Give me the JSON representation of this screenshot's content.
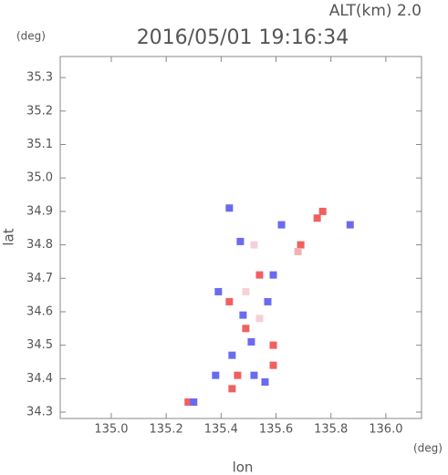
{
  "chart_data": {
    "type": "scatter",
    "title": "2016/05/01 19:16:34",
    "subtitle": "ALT(km) 2.0",
    "x_axis_label": "lon",
    "y_axis_label": "lat",
    "x_unit": "(deg)",
    "y_unit": "(deg)",
    "x": [
      135.75,
      135.77,
      135.69,
      135.68,
      135.46,
      135.59,
      135.59,
      135.54,
      135.43,
      135.28,
      135.44,
      135.49,
      135.43,
      135.47,
      135.59,
      135.39,
      135.57,
      135.51,
      135.52,
      135.3,
      135.87,
      135.62,
      135.48,
      135.44,
      135.56,
      135.38,
      135.49,
      135.54,
      135.52
    ],
    "y": [
      34.88,
      34.9,
      34.8,
      34.78,
      34.41,
      34.44,
      34.5,
      34.71,
      34.63,
      34.33,
      34.37,
      34.55,
      34.91,
      34.81,
      34.71,
      34.66,
      34.63,
      34.51,
      34.41,
      34.33,
      34.86,
      34.86,
      34.59,
      34.47,
      34.39,
      34.41,
      34.66,
      34.58,
      34.8
    ],
    "colors": [
      "#f06060",
      "#f06060",
      "#f06060",
      "#f4b0b0",
      "#f06060",
      "#f06060",
      "#f06060",
      "#f06060",
      "#f06060",
      "#f06060",
      "#f06060",
      "#f06060",
      "#6a6af0",
      "#6a6af0",
      "#6a6af0",
      "#6a6af0",
      "#6a6af0",
      "#6a6af0",
      "#6a6af0",
      "#6a6af0",
      "#6a6af0",
      "#6a6af0",
      "#6a6af0",
      "#6a6af0",
      "#6a6af0",
      "#6a6af0",
      "#f6d0d8",
      "#f6d0d8",
      "#f6d0d8"
    ],
    "xlim": [
      134.814,
      136.13
    ],
    "ylim": [
      34.281,
      35.363
    ],
    "xticks": [
      {
        "value": 135.0,
        "label": "135.0"
      },
      135.2,
      135.4,
      135.6,
      135.8,
      {
        "value": 136.0,
        "label": "136.0"
      }
    ],
    "yticks": [
      34.3,
      34.4,
      34.5,
      34.6,
      34.7,
      34.8,
      34.9,
      {
        "value": 35.0,
        "label": "35.0"
      },
      35.1,
      35.2,
      35.3
    ]
  }
}
